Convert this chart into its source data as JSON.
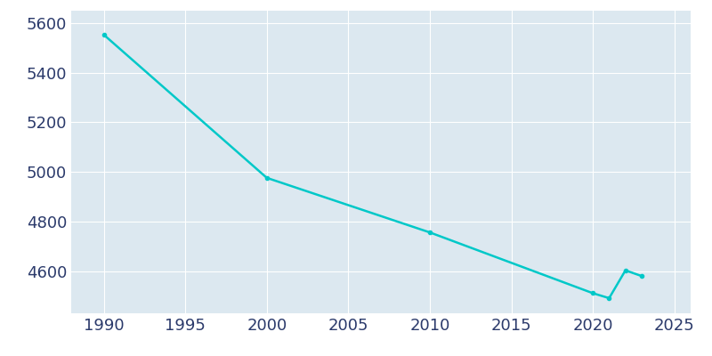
{
  "years": [
    1990,
    2000,
    2010,
    2020,
    2021,
    2022,
    2023
  ],
  "population": [
    5553,
    4976,
    4756,
    4511,
    4491,
    4603,
    4580
  ],
  "line_color": "#00c8c8",
  "plot_bg_color": "#dce8f0",
  "fig_bg_color": "#ffffff",
  "tick_label_color": "#2b3a6b",
  "grid_color": "#ffffff",
  "xlim": [
    1988,
    2026
  ],
  "ylim": [
    4430,
    5650
  ],
  "xticks": [
    1990,
    1995,
    2000,
    2005,
    2010,
    2015,
    2020,
    2025
  ],
  "yticks": [
    4600,
    4800,
    5000,
    5200,
    5400,
    5600
  ],
  "line_width": 1.8,
  "tick_fontsize": 13
}
